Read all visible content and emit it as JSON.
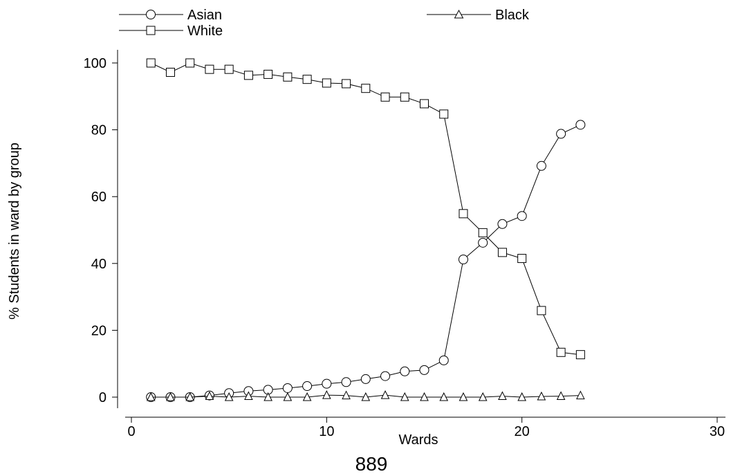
{
  "chart_data": {
    "type": "line",
    "title": "",
    "xlabel": "Wards",
    "ylabel": "% Students in ward by group",
    "xlim": [
      0,
      30
    ],
    "ylim": [
      0,
      100
    ],
    "x_ticks": [
      0,
      10,
      20,
      30
    ],
    "y_ticks": [
      0,
      20,
      40,
      60,
      80,
      100
    ],
    "grid": false,
    "legend_position": "top",
    "series": [
      {
        "name": "Asian",
        "marker": "circle",
        "x": [
          1,
          2,
          3,
          4,
          5,
          6,
          7,
          8,
          9,
          10,
          11,
          12,
          13,
          14,
          15,
          16,
          17,
          18,
          19,
          20,
          21,
          22,
          23
        ],
        "y": [
          0,
          0,
          0,
          0.5,
          1.2,
          1.8,
          2.2,
          2.7,
          3.3,
          4,
          4.5,
          5.4,
          6.3,
          7.7,
          8.1,
          11,
          41.2,
          46.2,
          51.8,
          54.2,
          69.2,
          78.8,
          81.5
        ]
      },
      {
        "name": "Black",
        "marker": "triangle",
        "x": [
          1,
          2,
          3,
          4,
          5,
          6,
          7,
          8,
          9,
          10,
          11,
          12,
          13,
          14,
          15,
          16,
          17,
          18,
          19,
          20,
          21,
          22,
          23
        ],
        "y": [
          0,
          0,
          0,
          0.3,
          0,
          0.3,
          0,
          0,
          0,
          0.6,
          0.5,
          0,
          0.6,
          0,
          0,
          0,
          0,
          0,
          0.3,
          0,
          0.2,
          0.3,
          0.5
        ]
      },
      {
        "name": "White",
        "marker": "square",
        "x": [
          1,
          2,
          3,
          4,
          5,
          6,
          7,
          8,
          9,
          10,
          11,
          12,
          13,
          14,
          15,
          16,
          17,
          18,
          19,
          20,
          21,
          22,
          23
        ],
        "y": [
          100,
          97.2,
          100,
          98.1,
          98.1,
          96.3,
          96.6,
          95.8,
          95.1,
          94,
          93.8,
          92.4,
          89.8,
          89.8,
          87.8,
          84.7,
          54.9,
          49.2,
          43.3,
          41.5,
          25.9,
          13.4,
          12.7
        ]
      }
    ]
  },
  "page_number": "889"
}
